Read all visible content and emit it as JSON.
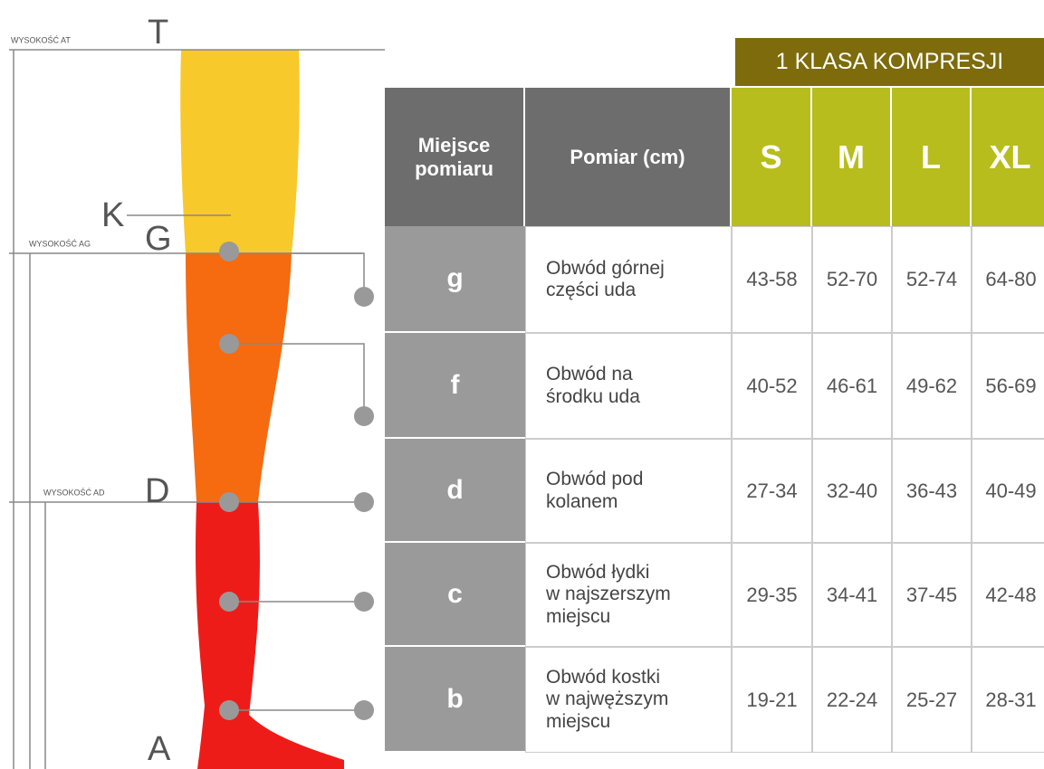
{
  "diagram": {
    "height_at": "WYSOKOŚĆ AT",
    "height_ag": "WYSOKOŚĆ AG",
    "height_ad": "WYSOKOŚĆ AD",
    "points": {
      "t": "T",
      "k": "K",
      "g": "G",
      "d": "D",
      "a": "A"
    }
  },
  "table": {
    "class_header": "1 KLASA KOMPRESJI",
    "headers": [
      "Miejsce\npomiaru",
      "Pomiar (cm)",
      "S",
      "M",
      "L",
      "XL"
    ],
    "rows": [
      [
        "g",
        "Obwód górnej\nczęści uda",
        "43-58",
        "52-70",
        "52-74",
        "64-80"
      ],
      [
        "f",
        "Obwód na\nśrodku uda",
        "40-52",
        "46-61",
        "49-62",
        "56-69"
      ],
      [
        "d",
        "Obwód pod\nkolanem",
        "27-34",
        "32-40",
        "36-43",
        "40-49"
      ],
      [
        "c",
        "Obwód łydki\nw najszerszym\nmiejscu",
        "29-35",
        "34-41",
        "37-45",
        "42-48"
      ],
      [
        "b",
        "Obwód kostki\nw najwęższym\nmiejscu",
        "19-21",
        "22-24",
        "25-27",
        "28-31"
      ]
    ]
  }
}
